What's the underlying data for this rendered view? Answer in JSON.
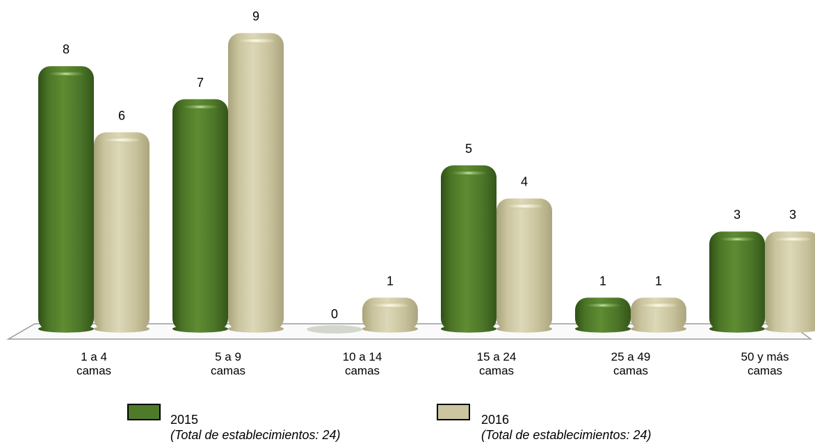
{
  "chart_data": {
    "type": "bar",
    "categories": [
      [
        "1 a 4",
        "camas"
      ],
      [
        "5 a 9",
        "camas"
      ],
      [
        "10 a 14",
        "camas"
      ],
      [
        "15 a 24",
        "camas"
      ],
      [
        "25 a 49",
        "camas"
      ],
      [
        "50 y más",
        "camas"
      ]
    ],
    "series": [
      {
        "name": "2015",
        "note": "(Total de establecimientos: 24)",
        "color": "#4e7a2a",
        "values": [
          8,
          7,
          0,
          5,
          1,
          3
        ]
      },
      {
        "name": "2016",
        "note": "(Total de establecimientos: 24)",
        "color": "#cbc6a0",
        "values": [
          6,
          9,
          1,
          4,
          1,
          3
        ]
      }
    ],
    "ylim": [
      0,
      9
    ],
    "grid": false,
    "legend_position": "bottom",
    "data_labels": true
  }
}
